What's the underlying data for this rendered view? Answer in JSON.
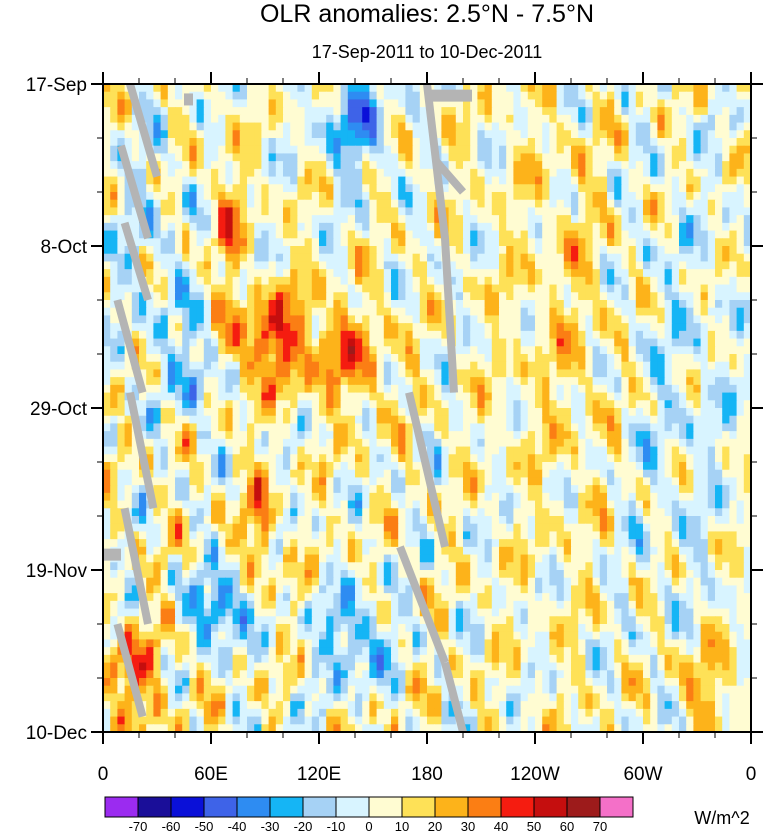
{
  "chart_data": {
    "type": "heatmap",
    "title": "OLR anomalies: 2.5°N - 7.5°N",
    "subtitle": "17-Sep-2011 to 10-Dec-2011",
    "x_ticks": [
      "0",
      "60E",
      "120E",
      "180",
      "120W",
      "60W",
      "0"
    ],
    "x_tick_values": [
      0,
      60,
      120,
      180,
      240,
      300,
      360
    ],
    "xlim": [
      0,
      360
    ],
    "y_ticks": [
      "17-Sep",
      "8-Oct",
      "29-Oct",
      "19-Nov",
      "10-Dec"
    ],
    "y_tick_values": [
      0,
      21,
      42,
      63,
      84
    ],
    "ylim": [
      0,
      84
    ],
    "colorbar": {
      "units": "W/m^2",
      "levels": [
        -70,
        -60,
        -50,
        -40,
        -30,
        -20,
        -10,
        0,
        10,
        20,
        30,
        40,
        50,
        60,
        70
      ],
      "colors": [
        "#9b2bf0",
        "#1a0e99",
        "#0a10d8",
        "#3e63e8",
        "#2e8cf2",
        "#15b5f5",
        "#a6d2f5",
        "#d8f4ff",
        "#fffcd2",
        "#fee157",
        "#fdb31a",
        "#fb7e14",
        "#f51c10",
        "#c50e0e",
        "#9d1b1b",
        "#f470c8"
      ]
    },
    "missing_color": "#b4b4b4",
    "features": [
      {
        "label": "strong positive anomaly streak",
        "lon_range": [
          65,
          160
        ],
        "day_range": [
          20,
          45
        ],
        "sign": "positive"
      },
      {
        "label": "negative anomaly cluster",
        "lon_range": [
          35,
          80
        ],
        "day_range": [
          60,
          72
        ],
        "sign": "negative"
      },
      {
        "label": "negative anomaly cluster",
        "lon_range": [
          120,
          165
        ],
        "day_range": [
          0,
          14
        ],
        "sign": "negative"
      }
    ]
  }
}
